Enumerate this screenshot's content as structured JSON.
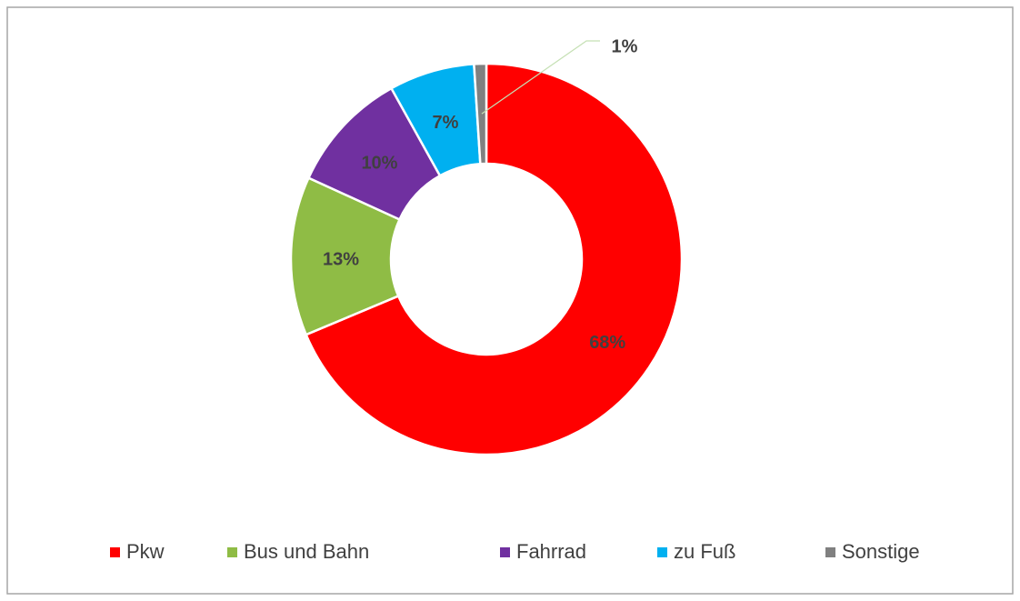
{
  "chart_data": {
    "type": "donut",
    "categories": [
      "Pkw",
      "Bus und Bahn",
      "Fahrrad",
      "zu Fuß",
      "Sonstige"
    ],
    "values": [
      68,
      13,
      10,
      7,
      1
    ],
    "value_labels": [
      "68%",
      "13%",
      "10%",
      "7%",
      "1%"
    ],
    "colors": [
      "#ff0000",
      "#8fbc45",
      "#7030a0",
      "#00b0f0",
      "#808080"
    ],
    "legend": "bottom"
  }
}
